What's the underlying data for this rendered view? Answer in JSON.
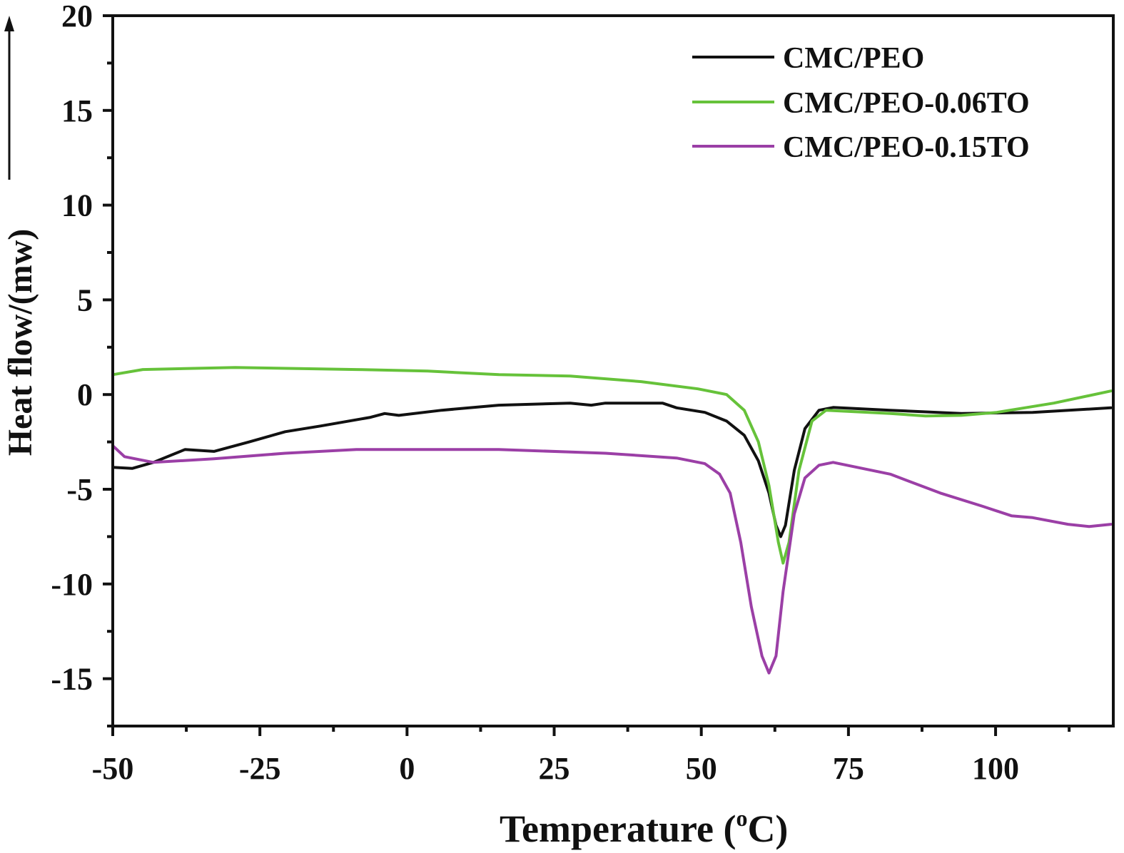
{
  "chart_data": {
    "type": "line",
    "title": "",
    "xlabel": "Temperature (",
    "xlabel_sup": "o",
    "xlabel_unit": "C)",
    "ylabel": "Heat flow/(mw)",
    "xlim": [
      -50,
      120
    ],
    "ylim": [
      -17.5,
      20
    ],
    "xticks": [
      -50,
      -25,
      0,
      25,
      50,
      75,
      100
    ],
    "yticks": [
      -15,
      -10,
      -5,
      0,
      5,
      10,
      15,
      20
    ],
    "xtick_labels": [
      "-50",
      "-25",
      "0",
      "25",
      "50",
      "75",
      "100"
    ],
    "ytick_labels": [
      "-15",
      "-10",
      "-5",
      "0",
      "5",
      "10",
      "15",
      "20"
    ],
    "legend_position": "top-right",
    "annotation": "up arrow (endothermic direction indicator)",
    "series": [
      {
        "name": "CMC/PEO",
        "color": "#111111",
        "x": [
          -50,
          -46.7,
          -43.1,
          -37.7,
          -32.8,
          -26.8,
          -20.7,
          -14.7,
          -6.2,
          -3.8,
          -1.4,
          5.9,
          15.6,
          27.7,
          31.3,
          33.7,
          43.4,
          45.8,
          50.6,
          54.3,
          57.3,
          59.7,
          61.5,
          62.7,
          63.5,
          64.3,
          65.8,
          67.6,
          70.0,
          72.4,
          82.1,
          94.2,
          106.3,
          119.6
        ],
        "y": [
          -3.84,
          -3.9,
          -3.58,
          -2.9,
          -3.0,
          -2.5,
          -1.96,
          -1.66,
          -1.2,
          -1.0,
          -1.1,
          -0.83,
          -0.56,
          -0.45,
          -0.56,
          -0.45,
          -0.45,
          -0.7,
          -0.94,
          -1.4,
          -2.15,
          -3.5,
          -5.2,
          -6.9,
          -7.5,
          -6.9,
          -4.0,
          -1.8,
          -0.83,
          -0.68,
          -0.83,
          -1.0,
          -0.94,
          -0.7
        ]
      },
      {
        "name": "CMC/PEO-0.06TO",
        "color": "#66c23a",
        "x": [
          -50,
          -44.9,
          -29.2,
          -8.6,
          3.5,
          15.6,
          27.7,
          39.8,
          49.4,
          54.3,
          57.3,
          59.7,
          61.5,
          63.1,
          63.9,
          64.9,
          66.6,
          68.8,
          71.2,
          82.1,
          88.1,
          94.2,
          100.2,
          109.9,
          119.6
        ],
        "y": [
          1.05,
          1.32,
          1.43,
          1.32,
          1.24,
          1.05,
          0.98,
          0.68,
          0.3,
          0,
          -0.83,
          -2.5,
          -4.8,
          -7.8,
          -8.9,
          -7.8,
          -4.0,
          -1.4,
          -0.83,
          -1.0,
          -1.13,
          -1.1,
          -0.94,
          -0.45,
          0.19
        ]
      },
      {
        "name": "CMC/PEO-0.15TO",
        "color": "#9b3fa6",
        "x": [
          -50,
          -48,
          -43.1,
          -32.8,
          -20.7,
          -8.6,
          15.6,
          33.7,
          45.8,
          50.6,
          53.1,
          54.9,
          56.7,
          58.5,
          60.3,
          61.5,
          62.7,
          63.9,
          65.8,
          67.6,
          70.0,
          72.4,
          82.1,
          90.6,
          97.8,
          102.7,
          106.3,
          112.3,
          115.9,
          119.6
        ],
        "y": [
          -2.7,
          -3.28,
          -3.58,
          -3.39,
          -3.1,
          -2.9,
          -2.9,
          -3.1,
          -3.35,
          -3.65,
          -4.2,
          -5.2,
          -7.8,
          -11.2,
          -13.8,
          -14.7,
          -13.8,
          -10.4,
          -6.3,
          -4.4,
          -3.73,
          -3.58,
          -4.2,
          -5.2,
          -5.9,
          -6.4,
          -6.5,
          -6.85,
          -6.97,
          -6.85
        ]
      }
    ]
  }
}
